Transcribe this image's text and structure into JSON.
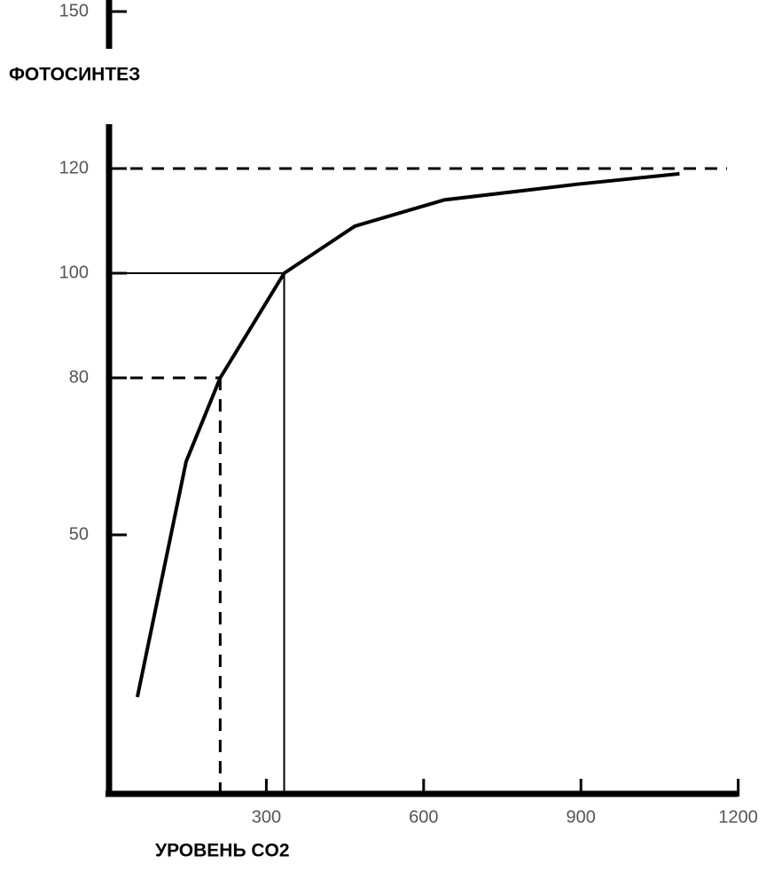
{
  "chart_data": {
    "type": "line",
    "ylabel": "ФОТОСИНТЕЗ",
    "xlabel": "УРОВЕНЬ CO2",
    "x": [
      54,
      147,
      212,
      334,
      469,
      639,
      893,
      1088
    ],
    "series": [
      {
        "color": "#000000",
        "values": [
          19,
          64,
          80,
          100,
          109,
          114,
          117,
          119
        ]
      }
    ],
    "xlim": [
      0,
      1253
    ],
    "ylim": [
      0,
      150
    ],
    "xticks": [
      300,
      600,
      900,
      1200
    ],
    "yticks": [
      50,
      80,
      100,
      120,
      150
    ],
    "reference_lines": [
      {
        "y": 120,
        "dashed": true
      },
      {
        "y": 100,
        "x": 334,
        "dashed": false
      },
      {
        "y": 80,
        "x": 212,
        "dashed": true
      }
    ]
  }
}
